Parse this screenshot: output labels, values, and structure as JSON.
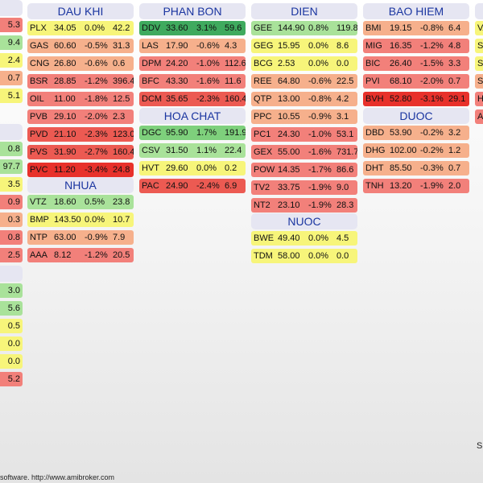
{
  "left_column": {
    "top": [
      "5.3",
      "9.4",
      "2.4",
      "0.7",
      "5.1"
    ],
    "mid": [
      "0.8",
      "97.7",
      "3.5",
      "0.9",
      "0.3",
      "0.8",
      "2.5"
    ],
    "bottom": [
      "3.0",
      "5.6",
      "0.5",
      "0.0",
      "0.0",
      "5.2"
    ]
  },
  "dau_khi": {
    "title": "DAU KHI",
    "rows": [
      {
        "sym": "PLX",
        "price": "34.05",
        "chg": "0.0%",
        "vol": "42.2"
      },
      {
        "sym": "GAS",
        "price": "60.60",
        "chg": "-0.5%",
        "vol": "31.3"
      },
      {
        "sym": "CNG",
        "price": "26.80",
        "chg": "-0.6%",
        "vol": "0.6"
      },
      {
        "sym": "BSR",
        "price": "28.85",
        "chg": "-1.2%",
        "vol": "396.4"
      },
      {
        "sym": "OIL",
        "price": "11.00",
        "chg": "-1.8%",
        "vol": "12.5"
      },
      {
        "sym": "PVB",
        "price": "29.10",
        "chg": "-2.0%",
        "vol": "2.3"
      },
      {
        "sym": "PVD",
        "price": "21.10",
        "chg": "-2.3%",
        "vol": "123.0"
      },
      {
        "sym": "PVS",
        "price": "31.90",
        "chg": "-2.7%",
        "vol": "160.4"
      },
      {
        "sym": "PVC",
        "price": "11.20",
        "chg": "-3.4%",
        "vol": "24.8"
      }
    ]
  },
  "nhua": {
    "title": "NHUA",
    "rows": [
      {
        "sym": "VTZ",
        "price": "18.60",
        "chg": "0.5%",
        "vol": "23.8"
      },
      {
        "sym": "BMP",
        "price": "143.50",
        "chg": "0.0%",
        "vol": "10.7"
      },
      {
        "sym": "NTP",
        "price": "63.00",
        "chg": "-0.9%",
        "vol": "7.9"
      },
      {
        "sym": "AAA",
        "price": "8.12",
        "chg": "-1.2%",
        "vol": "20.5"
      }
    ]
  },
  "phan_bon": {
    "title": "PHAN BON",
    "rows": [
      {
        "sym": "DDV",
        "price": "33.60",
        "chg": "3.1%",
        "vol": "59.6"
      },
      {
        "sym": "LAS",
        "price": "17.90",
        "chg": "-0.6%",
        "vol": "4.3"
      },
      {
        "sym": "DPM",
        "price": "24.20",
        "chg": "-1.0%",
        "vol": "112.6"
      },
      {
        "sym": "BFC",
        "price": "43.30",
        "chg": "-1.6%",
        "vol": "11.6"
      },
      {
        "sym": "DCM",
        "price": "35.65",
        "chg": "-2.3%",
        "vol": "160.4"
      }
    ]
  },
  "hoa_chat": {
    "title": "HOA CHAT",
    "rows": [
      {
        "sym": "DGC",
        "price": "95.90",
        "chg": "1.7%",
        "vol": "191.9"
      },
      {
        "sym": "CSV",
        "price": "31.50",
        "chg": "1.1%",
        "vol": "22.4"
      },
      {
        "sym": "HVT",
        "price": "29.60",
        "chg": "0.0%",
        "vol": "0.2"
      },
      {
        "sym": "PAC",
        "price": "24.90",
        "chg": "-2.4%",
        "vol": "6.9"
      }
    ]
  },
  "dien": {
    "title": "DIEN",
    "rows": [
      {
        "sym": "GEE",
        "price": "144.90",
        "chg": "0.8%",
        "vol": "119.8"
      },
      {
        "sym": "GEG",
        "price": "15.95",
        "chg": "0.0%",
        "vol": "8.6"
      },
      {
        "sym": "BCG",
        "price": "2.53",
        "chg": "0.0%",
        "vol": "0.0"
      },
      {
        "sym": "REE",
        "price": "64.80",
        "chg": "-0.6%",
        "vol": "22.5"
      },
      {
        "sym": "QTP",
        "price": "13.00",
        "chg": "-0.8%",
        "vol": "4.2"
      },
      {
        "sym": "PPC",
        "price": "10.55",
        "chg": "-0.9%",
        "vol": "3.1"
      },
      {
        "sym": "PC1",
        "price": "24.30",
        "chg": "-1.0%",
        "vol": "53.1"
      },
      {
        "sym": "GEX",
        "price": "55.00",
        "chg": "-1.6%",
        "vol": "731.7"
      },
      {
        "sym": "POW",
        "price": "14.35",
        "chg": "-1.7%",
        "vol": "86.6"
      },
      {
        "sym": "TV2",
        "price": "33.75",
        "chg": "-1.9%",
        "vol": "9.0"
      },
      {
        "sym": "NT2",
        "price": "23.10",
        "chg": "-1.9%",
        "vol": "28.3"
      }
    ]
  },
  "nuoc": {
    "title": "NUOC",
    "rows": [
      {
        "sym": "BWE",
        "price": "49.40",
        "chg": "0.0%",
        "vol": "4.5"
      },
      {
        "sym": "TDM",
        "price": "58.00",
        "chg": "0.0%",
        "vol": "0.0"
      }
    ]
  },
  "bao_hiem": {
    "title": "BAO HIEM",
    "rows": [
      {
        "sym": "BMI",
        "price": "19.15",
        "chg": "-0.8%",
        "vol": "6.4"
      },
      {
        "sym": "MIG",
        "price": "16.35",
        "chg": "-1.2%",
        "vol": "4.8"
      },
      {
        "sym": "BIC",
        "price": "26.40",
        "chg": "-1.5%",
        "vol": "3.3"
      },
      {
        "sym": "PVI",
        "price": "68.10",
        "chg": "-2.0%",
        "vol": "0.7"
      },
      {
        "sym": "BVH",
        "price": "52.80",
        "chg": "-3.1%",
        "vol": "29.1"
      }
    ]
  },
  "duoc": {
    "title": "DUOC",
    "rows": [
      {
        "sym": "DBD",
        "price": "53.90",
        "chg": "-0.2%",
        "vol": "3.2"
      },
      {
        "sym": "DHG",
        "price": "102.00",
        "chg": "-0.2%",
        "vol": "1.2"
      },
      {
        "sym": "DHT",
        "price": "85.50",
        "chg": "-0.3%",
        "vol": "0.7"
      },
      {
        "sym": "TNH",
        "price": "13.20",
        "chg": "-1.9%",
        "vol": "2.0"
      }
    ]
  },
  "right_column": [
    "VA",
    "SC",
    "SC",
    "SA",
    "HT",
    "AC"
  ],
  "right_edge_letter": "S",
  "footer": "software. http://www.amibroker.com",
  "colors": {
    "up_strong": "#3faa5e",
    "up_mid": "#7ed07c",
    "up_light": "#a9e29a",
    "flat": "#f7f57a",
    "down_light": "#f6b08c",
    "down_mid": "#f2807a",
    "down_strong": "#ec5a52",
    "down_max": "#e8312b",
    "header_bg": "#e6e6f2",
    "header_text": "#1a35a0"
  }
}
